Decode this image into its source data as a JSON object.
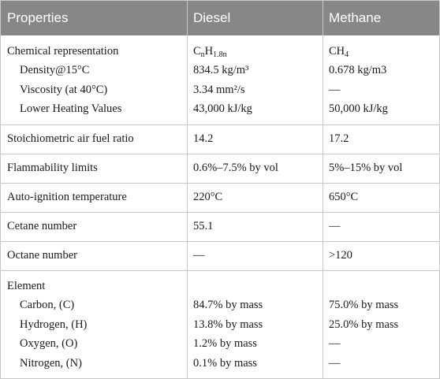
{
  "table": {
    "header": [
      "Properties",
      "Diesel",
      "Methane"
    ],
    "groups": [
      [
        [
          "Chemical representation",
          [
            {
              "text": "C"
            },
            {
              "sub": "n"
            },
            {
              "text": "H"
            },
            {
              "sub": "1.8n"
            }
          ],
          [
            {
              "text": "CH"
            },
            {
              "sub": "4"
            }
          ]
        ],
        [
          "Density@15°C",
          "834.5 kg/m³",
          "0.678 kg/m3"
        ],
        [
          "Viscosity (at 40°C)",
          "3.34 mm²/s",
          "—"
        ],
        [
          "Lower Heating Values",
          "43,000 kJ/kg",
          "50,000 kJ/kg"
        ]
      ],
      [
        [
          "Stoichiometric air fuel ratio",
          "14.2",
          "17.2"
        ]
      ],
      [
        [
          "Flammability limits",
          "0.6%–7.5% by vol",
          "5%–15% by vol"
        ]
      ],
      [
        [
          "Auto-ignition temperature",
          "220°C",
          "650°C"
        ]
      ],
      [
        [
          "Cetane number",
          "55.1",
          "—"
        ]
      ],
      [
        [
          "Octane number",
          "—",
          ">120"
        ]
      ],
      [
        [
          "Element",
          "",
          ""
        ],
        [
          "Carbon, (C)",
          "84.7% by mass",
          "75.0% by mass"
        ],
        [
          "Hydrogen, (H)",
          "13.8% by mass",
          "25.0% by mass"
        ],
        [
          "Oxygen, (O)",
          "1.2% by mass",
          "—"
        ],
        [
          "Nitrogen, (N)",
          "0.1% by mass",
          "—"
        ]
      ]
    ]
  }
}
